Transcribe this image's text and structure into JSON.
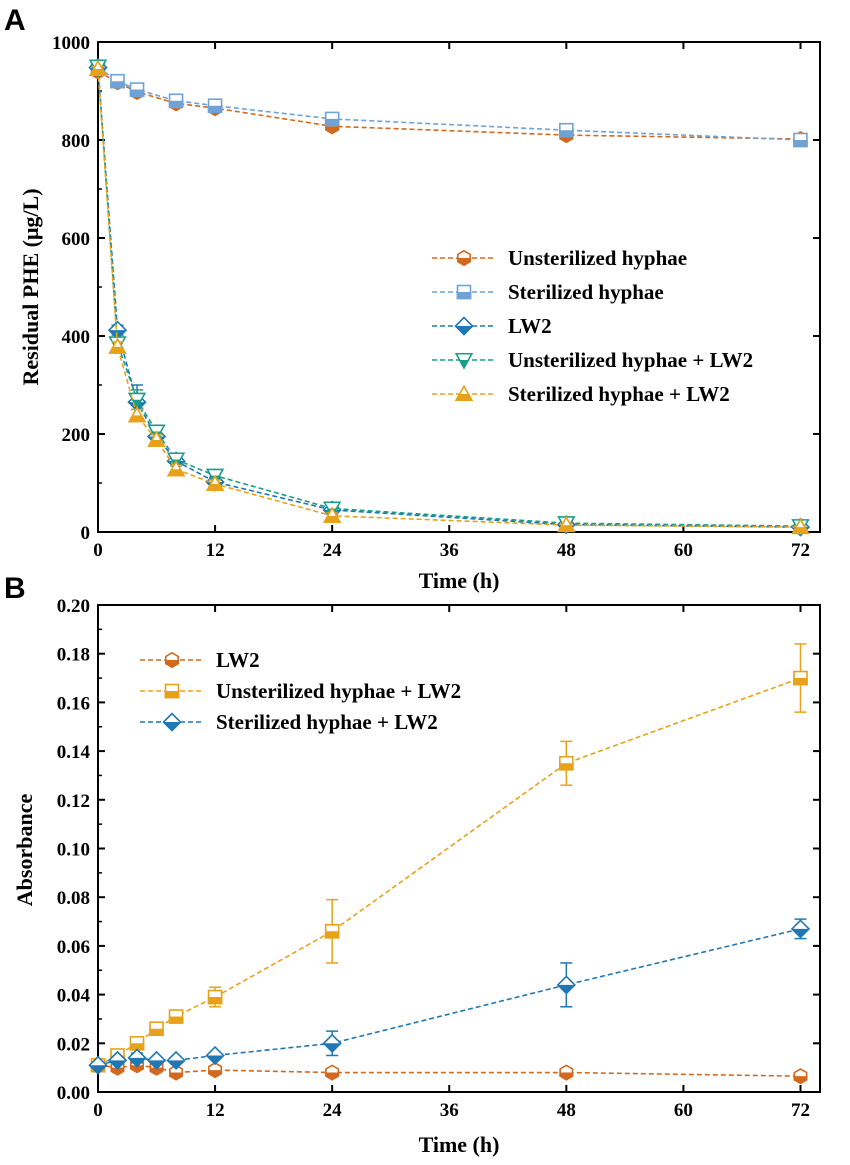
{
  "chart_data": [
    {
      "panel": "A",
      "type": "line",
      "xlabel": "Time  (h)",
      "ylabel": "Residual PHE (μg/L)",
      "xlim": [
        0,
        74
      ],
      "ylim": [
        0,
        1000
      ],
      "xticks": [
        0,
        12,
        24,
        36,
        48,
        60,
        72
      ],
      "yticks": [
        0,
        200,
        400,
        600,
        800,
        1000
      ],
      "legend_position": "center-right",
      "series": [
        {
          "name": "Unsterilized hyphae",
          "color": "#D2691E",
          "marker": "hexagon",
          "x": [
            0,
            2,
            4,
            8,
            12,
            24,
            48,
            72
          ],
          "y": [
            940,
            918,
            898,
            875,
            865,
            828,
            810,
            802
          ],
          "err": [
            8,
            6,
            6,
            6,
            5,
            5,
            5,
            5
          ]
        },
        {
          "name": "Sterilized hyphae",
          "color": "#6FA3D6",
          "marker": "square",
          "x": [
            0,
            2,
            4,
            8,
            12,
            24,
            48,
            72
          ],
          "y": [
            948,
            920,
            903,
            880,
            870,
            843,
            820,
            800
          ],
          "err": [
            6,
            6,
            6,
            6,
            5,
            5,
            5,
            5
          ]
        },
        {
          "name": "LW2",
          "color": "#1F77B4",
          "marker": "diamond",
          "x": [
            0,
            2,
            4,
            6,
            8,
            12,
            24,
            48,
            72
          ],
          "y": [
            948,
            412,
            265,
            195,
            145,
            102,
            45,
            15,
            10
          ],
          "err": [
            5,
            10,
            35,
            15,
            10,
            10,
            8,
            4,
            3
          ]
        },
        {
          "name": "Unsterilized hyphae + LW2",
          "color": "#1A9E8A",
          "marker": "triangle-down",
          "x": [
            0,
            2,
            4,
            6,
            8,
            12,
            24,
            48,
            72
          ],
          "y": [
            950,
            385,
            270,
            205,
            148,
            115,
            48,
            18,
            12
          ],
          "err": [
            5,
            10,
            20,
            12,
            10,
            8,
            6,
            4,
            3
          ]
        },
        {
          "name": "Sterilized hyphae + LW2",
          "color": "#E8A21A",
          "marker": "triangle-up",
          "x": [
            0,
            2,
            4,
            6,
            8,
            12,
            24,
            48,
            72
          ],
          "y": [
            945,
            378,
            238,
            188,
            128,
            98,
            33,
            14,
            10
          ],
          "err": [
            5,
            10,
            12,
            10,
            8,
            8,
            6,
            4,
            3
          ]
        }
      ]
    },
    {
      "panel": "B",
      "type": "line",
      "xlabel": "Time  (h)",
      "ylabel": "Absorbance",
      "xlim": [
        0,
        74
      ],
      "ylim": [
        0,
        0.2
      ],
      "xticks": [
        0,
        12,
        24,
        36,
        48,
        60,
        72
      ],
      "yticks": [
        "0.00",
        "0.02",
        "0.04",
        "0.06",
        "0.08",
        "0.10",
        "0.12",
        "0.14",
        "0.16",
        "0.18",
        "0.20"
      ],
      "legend_position": "top-left",
      "series": [
        {
          "name": "LW2",
          "color": "#D2691E",
          "marker": "hexagon",
          "x": [
            0,
            2,
            4,
            6,
            8,
            12,
            24,
            48,
            72
          ],
          "y": [
            0.011,
            0.01,
            0.011,
            0.01,
            0.008,
            0.009,
            0.008,
            0.008,
            0.0065
          ],
          "err": [
            0.001,
            0.001,
            0.001,
            0.001,
            0.001,
            0.001,
            0.001,
            0.001,
            0.001
          ]
        },
        {
          "name": "Unsterilized hyphae + LW2",
          "color": "#E8A21A",
          "marker": "square",
          "x": [
            0,
            2,
            4,
            6,
            8,
            12,
            24,
            48,
            72
          ],
          "y": [
            0.011,
            0.015,
            0.02,
            0.026,
            0.031,
            0.039,
            0.066,
            0.135,
            0.17
          ],
          "err": [
            0.001,
            0.002,
            0.002,
            0.002,
            0.002,
            0.004,
            0.013,
            0.009,
            0.014
          ]
        },
        {
          "name": "Sterilized hyphae + LW2",
          "color": "#1F77B4",
          "marker": "diamond",
          "x": [
            0,
            2,
            4,
            6,
            8,
            12,
            24,
            48,
            72
          ],
          "y": [
            0.011,
            0.013,
            0.014,
            0.013,
            0.013,
            0.015,
            0.02,
            0.044,
            0.067
          ],
          "err": [
            0.001,
            0.001,
            0.002,
            0.001,
            0.001,
            0.001,
            0.005,
            0.009,
            0.004
          ]
        }
      ]
    }
  ]
}
